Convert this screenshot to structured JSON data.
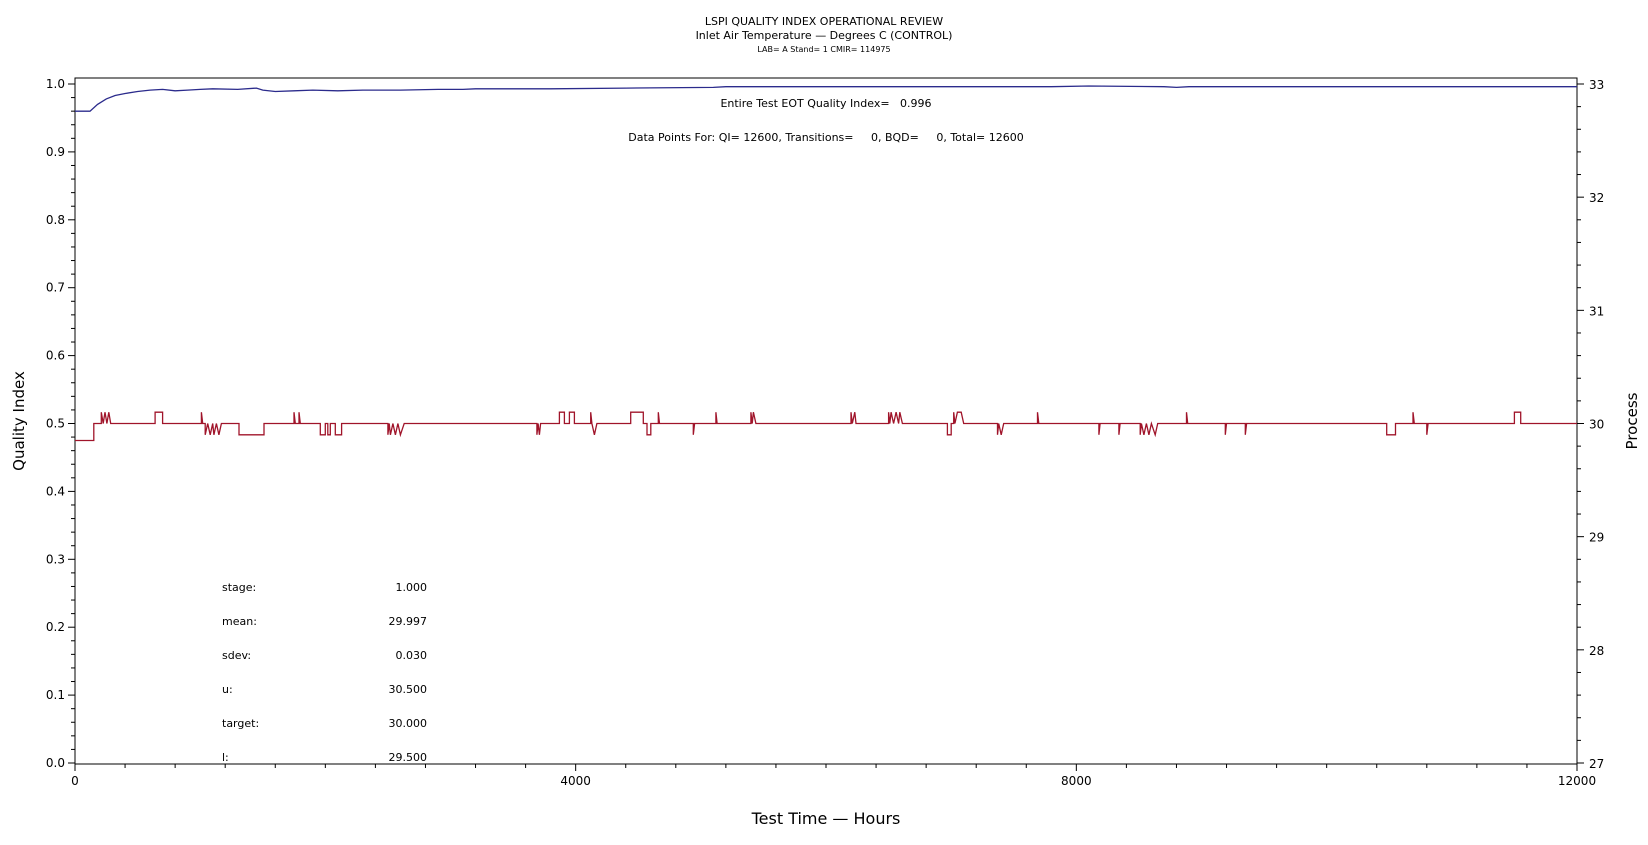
{
  "chart_data": {
    "type": "line",
    "title": "LSPI QUALITY INDEX OPERATIONAL REVIEW",
    "subtitle": "Inlet Air Temperature — Degrees C (CONTROL)",
    "subtitle2": "LAB= A Stand= 1 CMIR= 114975",
    "xlabel": "Test Time — Hours",
    "ylabel": "Quality Index",
    "y2label": "Process",
    "xlim": [
      0,
      12000
    ],
    "ylim": [
      0.0,
      1.0
    ],
    "y2lim": [
      27,
      33
    ],
    "x_ticks": [
      0,
      4000,
      8000,
      12000
    ],
    "y_ticks": [
      "0.0",
      "0.1",
      "0.2",
      "0.3",
      "0.4",
      "0.5",
      "0.6",
      "0.7",
      "0.8",
      "0.9",
      "1.0"
    ],
    "y2_ticks": [
      "27",
      "28",
      "29",
      "30",
      "31",
      "32",
      "33"
    ],
    "annotations": {
      "quality_line": "Entire Test EOT Quality Index=   0.996",
      "points_line": "Data Points For: QI= 12600, Transitions=     0, BQD=     0, Total= 12600"
    },
    "stats": [
      {
        "label": "stage:",
        "value": "1.000"
      },
      {
        "label": "mean:",
        "value": "29.997"
      },
      {
        "label": "sdev:",
        "value": "0.030"
      },
      {
        "label": "u:",
        "value": "30.500"
      },
      {
        "label": "target:",
        "value": "30.000"
      },
      {
        "label": "l:",
        "value": "29.500"
      }
    ],
    "series": [
      {
        "axis": "left",
        "color": "#2b2b8c",
        "points": [
          [
            0,
            0.96
          ],
          [
            120,
            0.96
          ],
          [
            180,
            0.97
          ],
          [
            250,
            0.978
          ],
          [
            320,
            0.983
          ],
          [
            400,
            0.986
          ],
          [
            500,
            0.989
          ],
          [
            600,
            0.991
          ],
          [
            700,
            0.992
          ],
          [
            800,
            0.99
          ],
          [
            900,
            0.991
          ],
          [
            1000,
            0.992
          ],
          [
            1100,
            0.993
          ],
          [
            1300,
            0.992
          ],
          [
            1450,
            0.994
          ],
          [
            1500,
            0.991
          ],
          [
            1600,
            0.989
          ],
          [
            1750,
            0.99
          ],
          [
            1900,
            0.991
          ],
          [
            2100,
            0.99
          ],
          [
            2300,
            0.991
          ],
          [
            2600,
            0.991
          ],
          [
            2900,
            0.992
          ],
          [
            3100,
            0.992
          ],
          [
            3200,
            0.993
          ],
          [
            3800,
            0.993
          ],
          [
            4400,
            0.994
          ],
          [
            5100,
            0.995
          ],
          [
            5200,
            0.996
          ],
          [
            6500,
            0.996
          ],
          [
            7100,
            0.996
          ],
          [
            7800,
            0.996
          ],
          [
            8100,
            0.997
          ],
          [
            8700,
            0.996
          ],
          [
            8800,
            0.995
          ],
          [
            8900,
            0.996
          ],
          [
            9100,
            0.996
          ],
          [
            10000,
            0.996
          ],
          [
            11000,
            0.996
          ],
          [
            12000,
            0.996
          ]
        ]
      },
      {
        "axis": "right",
        "color": "#a0142a",
        "base": 30.0,
        "points": [
          [
            0,
            29.85
          ],
          [
            150,
            29.85
          ],
          [
            150,
            30.0
          ],
          [
            210,
            30.0
          ],
          [
            210,
            30.1
          ],
          [
            225,
            30.0
          ],
          [
            240,
            30.1
          ],
          [
            255,
            30.0
          ],
          [
            270,
            30.1
          ],
          [
            285,
            30.0
          ],
          [
            640,
            30.0
          ],
          [
            640,
            30.1
          ],
          [
            700,
            30.1
          ],
          [
            700,
            30.0
          ],
          [
            1010,
            30.0
          ],
          [
            1010,
            30.1
          ],
          [
            1020,
            30.0
          ],
          [
            1040,
            30.0
          ],
          [
            1040,
            29.9
          ],
          [
            1060,
            30.0
          ],
          [
            1080,
            29.9
          ],
          [
            1100,
            30.0
          ],
          [
            1110,
            29.9
          ],
          [
            1130,
            30.0
          ],
          [
            1150,
            29.9
          ],
          [
            1170,
            30.0
          ],
          [
            1310,
            30.0
          ],
          [
            1310,
            29.9
          ],
          [
            1510,
            29.9
          ],
          [
            1510,
            30.0
          ],
          [
            1750,
            30.0
          ],
          [
            1750,
            30.1
          ],
          [
            1760,
            30.0
          ],
          [
            1790,
            30.0
          ],
          [
            1790,
            30.1
          ],
          [
            1800,
            30.0
          ],
          [
            1960,
            30.0
          ],
          [
            1960,
            29.9
          ],
          [
            2000,
            29.9
          ],
          [
            2000,
            30.0
          ],
          [
            2020,
            30.0
          ],
          [
            2020,
            29.9
          ],
          [
            2040,
            29.9
          ],
          [
            2040,
            30.0
          ],
          [
            2080,
            30.0
          ],
          [
            2080,
            29.9
          ],
          [
            2130,
            29.9
          ],
          [
            2130,
            30.0
          ],
          [
            2500,
            30.0
          ],
          [
            2500,
            29.9
          ],
          [
            2510,
            30.0
          ],
          [
            2520,
            29.9
          ],
          [
            2540,
            30.0
          ],
          [
            2560,
            29.9
          ],
          [
            2580,
            30.0
          ],
          [
            2600,
            29.9
          ],
          [
            2630,
            30.0
          ],
          [
            3690,
            30.0
          ],
          [
            3690,
            29.9
          ],
          [
            3700,
            30.0
          ],
          [
            3710,
            29.9
          ],
          [
            3720,
            30.0
          ],
          [
            3870,
            30.0
          ],
          [
            3870,
            30.1
          ],
          [
            3910,
            30.1
          ],
          [
            3910,
            30.0
          ],
          [
            3950,
            30.0
          ],
          [
            3950,
            30.1
          ],
          [
            3990,
            30.1
          ],
          [
            3990,
            30.0
          ],
          [
            4120,
            30.0
          ],
          [
            4120,
            30.1
          ],
          [
            4130,
            30.0
          ],
          [
            4150,
            29.9
          ],
          [
            4170,
            30.0
          ],
          [
            4440,
            30.0
          ],
          [
            4440,
            30.1
          ],
          [
            4540,
            30.1
          ],
          [
            4540,
            30.0
          ],
          [
            4570,
            30.0
          ],
          [
            4570,
            29.9
          ],
          [
            4600,
            29.9
          ],
          [
            4600,
            30.0
          ],
          [
            4660,
            30.0
          ],
          [
            4660,
            30.1
          ],
          [
            4670,
            30.0
          ],
          [
            4940,
            30.0
          ],
          [
            4940,
            29.9
          ],
          [
            4950,
            30.0
          ],
          [
            5120,
            30.0
          ],
          [
            5120,
            30.1
          ],
          [
            5130,
            30.0
          ],
          [
            5400,
            30.0
          ],
          [
            5400,
            30.1
          ],
          [
            5410,
            30.0
          ],
          [
            5420,
            30.1
          ],
          [
            5440,
            30.0
          ],
          [
            6200,
            30.0
          ],
          [
            6200,
            30.1
          ],
          [
            6210,
            30.0
          ],
          [
            6230,
            30.1
          ],
          [
            6240,
            30.0
          ],
          [
            6500,
            30.0
          ],
          [
            6500,
            30.1
          ],
          [
            6510,
            30.0
          ],
          [
            6520,
            30.1
          ],
          [
            6540,
            30.0
          ],
          [
            6560,
            30.1
          ],
          [
            6580,
            30.0
          ],
          [
            6590,
            30.1
          ],
          [
            6610,
            30.0
          ],
          [
            6970,
            30.0
          ],
          [
            6970,
            29.9
          ],
          [
            7000,
            29.9
          ],
          [
            7000,
            30.0
          ],
          [
            7020,
            30.0
          ],
          [
            7020,
            30.1
          ],
          [
            7030,
            30.0
          ],
          [
            7050,
            30.1
          ],
          [
            7080,
            30.1
          ],
          [
            7100,
            30.0
          ],
          [
            7370,
            30.0
          ],
          [
            7370,
            29.9
          ],
          [
            7380,
            30.0
          ],
          [
            7400,
            29.9
          ],
          [
            7420,
            30.0
          ],
          [
            7690,
            30.0
          ],
          [
            7690,
            30.1
          ],
          [
            7700,
            30.0
          ],
          [
            8180,
            30.0
          ],
          [
            8180,
            29.9
          ],
          [
            8190,
            30.0
          ],
          [
            8340,
            30.0
          ],
          [
            8340,
            29.9
          ],
          [
            8350,
            30.0
          ],
          [
            8510,
            30.0
          ],
          [
            8510,
            29.9
          ],
          [
            8520,
            30.0
          ],
          [
            8540,
            29.9
          ],
          [
            8560,
            30.0
          ],
          [
            8580,
            29.9
          ],
          [
            8600,
            30.0
          ],
          [
            8630,
            29.9
          ],
          [
            8650,
            30.0
          ],
          [
            8880,
            30.0
          ],
          [
            8880,
            30.1
          ],
          [
            8890,
            30.0
          ],
          [
            9190,
            30.0
          ],
          [
            9190,
            29.9
          ],
          [
            9200,
            30.0
          ],
          [
            9350,
            30.0
          ],
          [
            9350,
            29.9
          ],
          [
            9360,
            30.0
          ],
          [
            10480,
            30.0
          ],
          [
            10480,
            29.9
          ],
          [
            10550,
            29.9
          ],
          [
            10550,
            30.0
          ],
          [
            10690,
            30.0
          ],
          [
            10690,
            30.1
          ],
          [
            10700,
            30.0
          ],
          [
            10800,
            30.0
          ],
          [
            10800,
            29.9
          ],
          [
            10810,
            30.0
          ],
          [
            11500,
            30.0
          ],
          [
            11500,
            30.1
          ],
          [
            11550,
            30.1
          ],
          [
            11550,
            30.0
          ],
          [
            12000,
            30.0
          ]
        ]
      }
    ]
  }
}
